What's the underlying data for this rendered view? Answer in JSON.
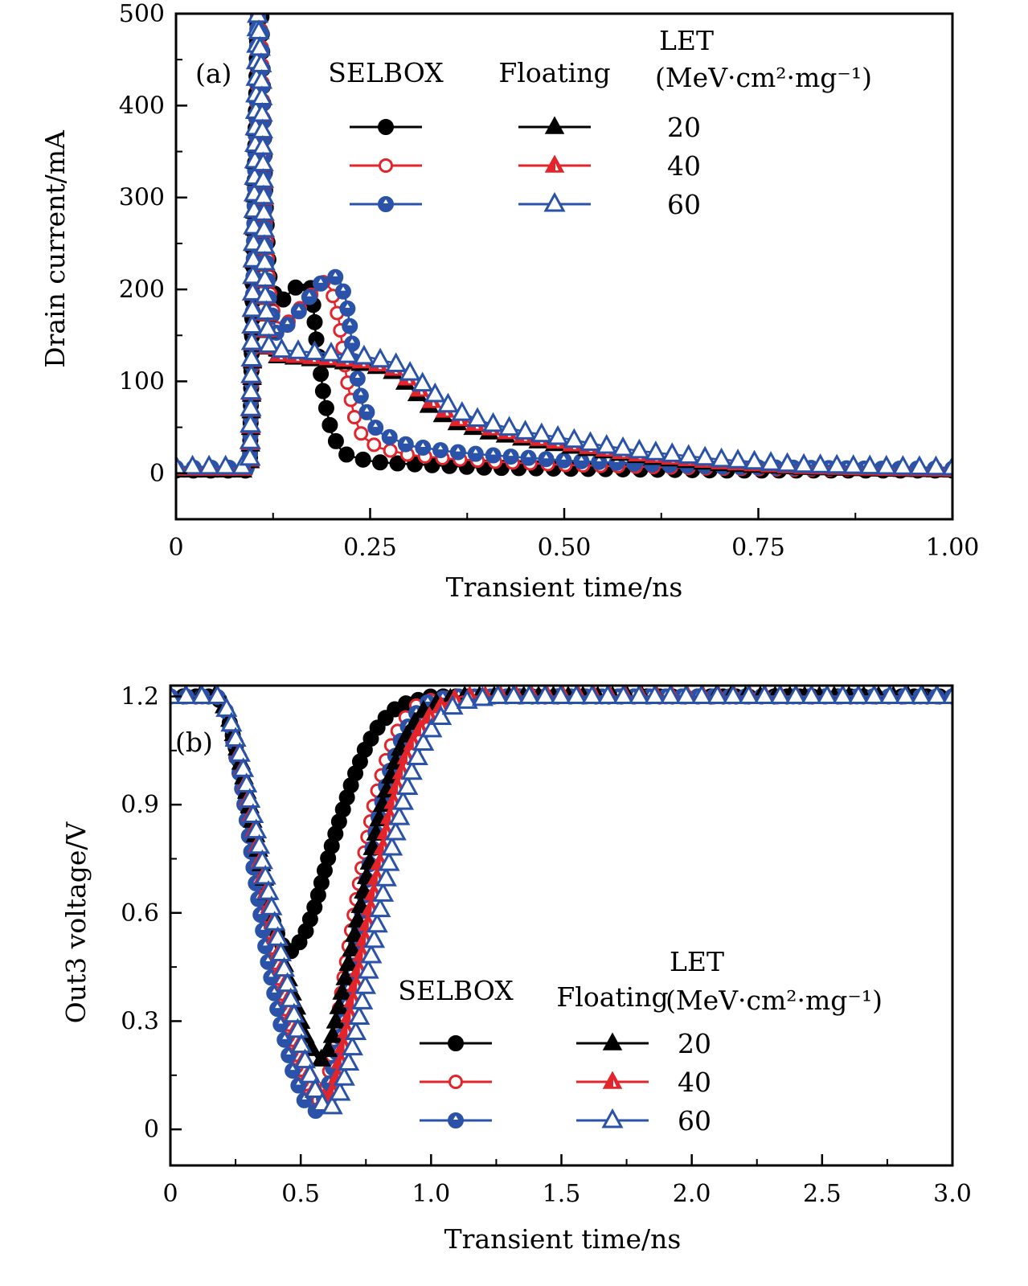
{
  "colors": {
    "black": "#000000",
    "red": "#e3242b",
    "blue": "#2a52a8"
  },
  "chart_data": [
    {
      "panel": "(a)",
      "type": "line",
      "title": "",
      "xlabel": "Transient time/ns",
      "ylabel": "Drain current/mA",
      "xlim": [
        0,
        1.0
      ],
      "ylim": [
        -50,
        500
      ],
      "xticks": [
        0,
        0.25,
        0.5,
        0.75,
        1.0
      ],
      "xtick_labels": [
        "0",
        "0.25",
        "0.50",
        "0.75",
        "1.00"
      ],
      "xminor": [
        0.125,
        0.375,
        0.625,
        0.875
      ],
      "yticks": [
        0,
        100,
        200,
        300,
        400,
        500
      ],
      "ytick_labels": [
        "0",
        "100",
        "200",
        "300",
        "400",
        "500"
      ],
      "yminor": [
        50,
        150,
        250,
        350,
        450
      ],
      "grid": false,
      "legend": {
        "placement": "top-right",
        "col_headers": [
          "SELBOX",
          "Floating"
        ],
        "let_header": "LET",
        "let_unit": "(MeV·cm²·mg⁻¹)",
        "let_values": [
          "20",
          "40",
          "60"
        ]
      },
      "series": [
        {
          "name": "SELBOX LET 20",
          "color": "black",
          "marker": "circle-filled",
          "x": [
            0,
            0.02,
            0.04,
            0.06,
            0.08,
            0.095,
            0.1,
            0.105,
            0.11,
            0.115,
            0.12,
            0.13,
            0.14,
            0.15,
            0.16,
            0.17,
            0.175,
            0.18,
            0.19,
            0.2,
            0.21,
            0.22,
            0.24,
            0.26,
            0.3,
            0.35,
            0.4,
            0.5,
            0.6,
            0.7,
            0.8,
            0.9,
            1.0
          ],
          "y": [
            3,
            3,
            3,
            3,
            3,
            3,
            250,
            500,
            500,
            300,
            215,
            185,
            190,
            200,
            205,
            205,
            200,
            150,
            85,
            45,
            28,
            20,
            15,
            12,
            10,
            8,
            6,
            5,
            4,
            3,
            3,
            3,
            3
          ]
        },
        {
          "name": "SELBOX LET 40",
          "color": "red",
          "marker": "circle-open",
          "x": [
            0,
            0.02,
            0.04,
            0.06,
            0.08,
            0.095,
            0.1,
            0.105,
            0.11,
            0.115,
            0.12,
            0.13,
            0.14,
            0.15,
            0.16,
            0.17,
            0.18,
            0.19,
            0.2,
            0.21,
            0.22,
            0.23,
            0.24,
            0.26,
            0.3,
            0.35,
            0.4,
            0.5,
            0.6,
            0.7,
            0.8,
            0.9,
            1.0
          ],
          "y": [
            5,
            5,
            5,
            5,
            5,
            5,
            160,
            500,
            480,
            280,
            200,
            155,
            160,
            170,
            180,
            190,
            200,
            208,
            200,
            165,
            102,
            60,
            40,
            28,
            20,
            16,
            13,
            9,
            7,
            5,
            4,
            4,
            3
          ]
        },
        {
          "name": "SELBOX LET 60",
          "color": "blue",
          "marker": "circle-half",
          "x": [
            0,
            0.02,
            0.04,
            0.06,
            0.08,
            0.095,
            0.1,
            0.105,
            0.11,
            0.115,
            0.12,
            0.13,
            0.14,
            0.15,
            0.16,
            0.17,
            0.18,
            0.19,
            0.2,
            0.21,
            0.22,
            0.23,
            0.24,
            0.26,
            0.3,
            0.35,
            0.4,
            0.5,
            0.6,
            0.7,
            0.8,
            0.9,
            1.0
          ],
          "y": [
            6,
            6,
            6,
            6,
            6,
            6,
            225,
            500,
            480,
            250,
            185,
            150,
            158,
            168,
            178,
            190,
            200,
            210,
            215,
            212,
            185,
            120,
            75,
            45,
            30,
            24,
            20,
            14,
            10,
            7,
            6,
            5,
            5
          ]
        },
        {
          "name": "Floating LET 20",
          "color": "black",
          "marker": "triangle-filled",
          "x": [
            0,
            0.02,
            0.04,
            0.06,
            0.08,
            0.095,
            0.1,
            0.105,
            0.11,
            0.115,
            0.12,
            0.15,
            0.2,
            0.25,
            0.28,
            0.3,
            0.33,
            0.36,
            0.4,
            0.45,
            0.5,
            0.55,
            0.6,
            0.7,
            0.8,
            0.9,
            1.0
          ],
          "y": [
            3,
            3,
            3,
            3,
            3,
            3,
            175,
            500,
            400,
            200,
            128,
            126,
            122,
            118,
            110,
            95,
            70,
            55,
            45,
            37,
            30,
            24,
            18,
            10,
            6,
            4,
            3
          ]
        },
        {
          "name": "Floating LET 40",
          "color": "red",
          "marker": "triangle-half",
          "x": [
            0,
            0.02,
            0.04,
            0.06,
            0.08,
            0.095,
            0.1,
            0.105,
            0.11,
            0.115,
            0.12,
            0.15,
            0.2,
            0.25,
            0.28,
            0.3,
            0.33,
            0.36,
            0.4,
            0.45,
            0.5,
            0.55,
            0.6,
            0.7,
            0.8,
            0.9,
            1.0
          ],
          "y": [
            5,
            5,
            5,
            5,
            5,
            5,
            180,
            500,
            420,
            200,
            130,
            128,
            125,
            121,
            114,
            102,
            78,
            60,
            50,
            40,
            33,
            26,
            20,
            12,
            7,
            5,
            4
          ]
        },
        {
          "name": "Floating LET 60",
          "color": "blue",
          "marker": "triangle-open",
          "x": [
            0,
            0.02,
            0.04,
            0.06,
            0.08,
            0.095,
            0.1,
            0.105,
            0.11,
            0.115,
            0.12,
            0.15,
            0.2,
            0.25,
            0.28,
            0.3,
            0.33,
            0.36,
            0.4,
            0.45,
            0.5,
            0.55,
            0.6,
            0.7,
            0.8,
            0.9,
            1.0
          ],
          "y": [
            7,
            7,
            7,
            7,
            7,
            7,
            260,
            500,
            440,
            190,
            135,
            133,
            130,
            126,
            120,
            110,
            88,
            68,
            55,
            45,
            38,
            30,
            24,
            15,
            9,
            7,
            6
          ]
        }
      ]
    },
    {
      "panel": "(b)",
      "type": "line",
      "title": "",
      "xlabel": "Transient time/ns",
      "ylabel": "Out3 voltage/V",
      "xlim": [
        0,
        3.0
      ],
      "ylim": [
        -0.1,
        1.23
      ],
      "xticks": [
        0,
        0.5,
        1.0,
        1.5,
        2.0,
        2.5,
        3.0
      ],
      "xtick_labels": [
        "0",
        "0.5",
        "1.0",
        "1.5",
        "2.0",
        "2.5",
        "3.0"
      ],
      "xminor": [
        0.25,
        0.75,
        1.25,
        1.75,
        2.25,
        2.75
      ],
      "yticks": [
        0,
        0.3,
        0.6,
        0.9,
        1.2
      ],
      "ytick_labels": [
        "0",
        "0.3",
        "0.6",
        "0.9",
        "1.2"
      ],
      "yminor": [
        0.15,
        0.45,
        0.75,
        1.05
      ],
      "grid": false,
      "legend": {
        "placement": "bottom-right",
        "col_headers": [
          "SELBOX",
          "Floating"
        ],
        "let_header": "LET",
        "let_unit": "(MeV·cm²·mg⁻¹)",
        "let_values": [
          "20",
          "40",
          "60"
        ]
      },
      "series": [
        {
          "name": "SELBOX LET 20",
          "color": "black",
          "marker": "circle-filled",
          "x": [
            0,
            0.1,
            0.18,
            0.22,
            0.27,
            0.32,
            0.37,
            0.42,
            0.45,
            0.48,
            0.52,
            0.56,
            0.6,
            0.65,
            0.7,
            0.75,
            0.8,
            0.85,
            0.9,
            0.95,
            1.0,
            1.1,
            1.2,
            1.5,
            2.0,
            2.5,
            3.0
          ],
          "y": [
            1.2,
            1.2,
            1.2,
            1.15,
            1.0,
            0.8,
            0.63,
            0.52,
            0.49,
            0.5,
            0.55,
            0.63,
            0.74,
            0.86,
            0.97,
            1.06,
            1.12,
            1.16,
            1.18,
            1.19,
            1.2,
            1.2,
            1.2,
            1.2,
            1.2,
            1.2,
            1.2
          ]
        },
        {
          "name": "SELBOX LET 40",
          "color": "red",
          "marker": "circle-open",
          "x": [
            0,
            0.1,
            0.18,
            0.22,
            0.27,
            0.32,
            0.37,
            0.42,
            0.47,
            0.52,
            0.56,
            0.6,
            0.63,
            0.66,
            0.7,
            0.74,
            0.78,
            0.82,
            0.86,
            0.9,
            0.95,
            1.0,
            1.1,
            1.2,
            1.5,
            2.0,
            2.5,
            3.0
          ],
          "y": [
            1.2,
            1.2,
            1.2,
            1.15,
            0.98,
            0.75,
            0.52,
            0.35,
            0.2,
            0.1,
            0.07,
            0.12,
            0.25,
            0.4,
            0.58,
            0.75,
            0.9,
            1.01,
            1.09,
            1.14,
            1.18,
            1.19,
            1.2,
            1.2,
            1.2,
            1.2,
            1.2,
            1.2
          ]
        },
        {
          "name": "SELBOX LET 60",
          "color": "blue",
          "marker": "circle-half",
          "x": [
            0,
            0.1,
            0.18,
            0.22,
            0.27,
            0.32,
            0.37,
            0.42,
            0.47,
            0.52,
            0.56,
            0.6,
            0.64,
            0.68,
            0.72,
            0.76,
            0.8,
            0.84,
            0.88,
            0.92,
            0.96,
            1.0,
            1.1,
            1.2,
            1.5,
            2.0,
            2.5,
            3.0
          ],
          "y": [
            1.2,
            1.2,
            1.2,
            1.15,
            0.97,
            0.72,
            0.48,
            0.3,
            0.16,
            0.07,
            0.05,
            0.1,
            0.22,
            0.38,
            0.55,
            0.72,
            0.87,
            0.99,
            1.07,
            1.13,
            1.17,
            1.19,
            1.2,
            1.2,
            1.2,
            1.2,
            1.2,
            1.2
          ]
        },
        {
          "name": "Floating LET 20",
          "color": "black",
          "marker": "triangle-filled",
          "x": [
            0,
            0.1,
            0.18,
            0.22,
            0.27,
            0.32,
            0.37,
            0.42,
            0.47,
            0.52,
            0.56,
            0.59,
            0.62,
            0.65,
            0.69,
            0.73,
            0.77,
            0.81,
            0.85,
            0.89,
            0.93,
            0.97,
            1.02,
            1.1,
            1.2,
            1.5,
            2.0,
            2.5,
            3.0
          ],
          "y": [
            1.2,
            1.2,
            1.2,
            1.16,
            1.02,
            0.84,
            0.66,
            0.5,
            0.37,
            0.25,
            0.2,
            0.19,
            0.25,
            0.35,
            0.48,
            0.62,
            0.76,
            0.89,
            0.99,
            1.07,
            1.12,
            1.16,
            1.18,
            1.2,
            1.2,
            1.2,
            1.2,
            1.2,
            1.2
          ]
        },
        {
          "name": "Floating LET 40",
          "color": "red",
          "marker": "triangle-half",
          "x": [
            0,
            0.1,
            0.18,
            0.22,
            0.27,
            0.32,
            0.37,
            0.42,
            0.47,
            0.52,
            0.57,
            0.61,
            0.64,
            0.67,
            0.71,
            0.75,
            0.79,
            0.83,
            0.87,
            0.91,
            0.95,
            1.0,
            1.05,
            1.12,
            1.2,
            1.5,
            2.0,
            2.5,
            3.0
          ],
          "y": [
            1.2,
            1.2,
            1.2,
            1.16,
            1.02,
            0.84,
            0.66,
            0.48,
            0.32,
            0.18,
            0.09,
            0.08,
            0.14,
            0.25,
            0.39,
            0.54,
            0.69,
            0.83,
            0.95,
            1.04,
            1.1,
            1.15,
            1.18,
            1.2,
            1.2,
            1.2,
            1.2,
            1.2,
            1.2
          ]
        },
        {
          "name": "Floating LET 60",
          "color": "blue",
          "marker": "triangle-open",
          "x": [
            0,
            0.1,
            0.18,
            0.22,
            0.27,
            0.32,
            0.37,
            0.42,
            0.47,
            0.52,
            0.57,
            0.61,
            0.65,
            0.69,
            0.73,
            0.77,
            0.81,
            0.85,
            0.89,
            0.93,
            0.97,
            1.02,
            1.08,
            1.15,
            1.25,
            1.5,
            2.0,
            2.5,
            3.0
          ],
          "y": [
            1.2,
            1.2,
            1.2,
            1.16,
            1.03,
            0.86,
            0.68,
            0.5,
            0.33,
            0.18,
            0.08,
            0.05,
            0.1,
            0.2,
            0.33,
            0.48,
            0.63,
            0.78,
            0.9,
            1.0,
            1.07,
            1.13,
            1.17,
            1.19,
            1.2,
            1.2,
            1.2,
            1.2,
            1.2
          ]
        }
      ]
    }
  ]
}
